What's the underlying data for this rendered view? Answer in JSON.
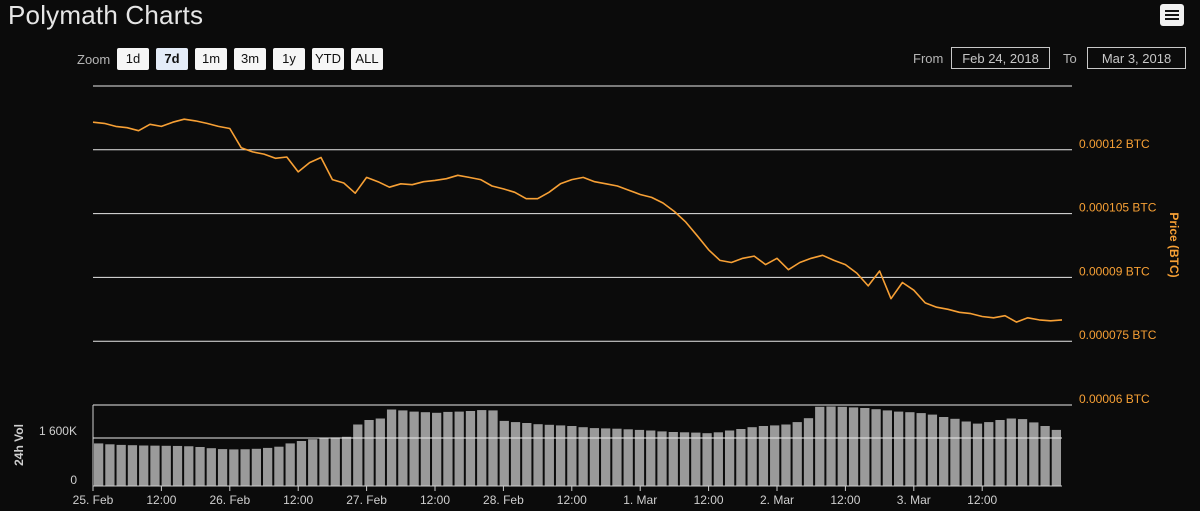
{
  "header": {
    "title": "Polymath Charts",
    "menu_icon": "hamburger-menu-icon"
  },
  "zoom": {
    "label": "Zoom",
    "buttons": [
      "1d",
      "7d",
      "1m",
      "3m",
      "1y",
      "YTD",
      "ALL"
    ],
    "active": "7d"
  },
  "range": {
    "from_label": "From",
    "from_value": "Feb 24, 2018",
    "to_label": "To",
    "to_value": "Mar 3, 2018"
  },
  "colors": {
    "price_line": "#f7a035",
    "grid": "#e8e8e8",
    "volume": "#9a9a9a",
    "price_labels": "#f7a035"
  },
  "chart_data": {
    "type": "line",
    "title": "Polymath Charts",
    "price": {
      "ylabel": "Price (BTC)",
      "ylim": [
        6e-05,
        0.000135
      ],
      "y_ticks": [
        7.5e-05,
        9e-05,
        0.000105,
        0.00012,
        6e-05
      ],
      "y_tick_labels": [
        "0.000075 BTC",
        "0.00009 BTC",
        "0.000105 BTC",
        "0.00012 BTC",
        "0.00006 BTC"
      ],
      "x_hours": [
        0,
        2,
        4,
        6,
        8,
        10,
        12,
        14,
        16,
        18,
        20,
        22,
        24,
        26,
        28,
        30,
        32,
        34,
        36,
        38,
        40,
        42,
        44,
        46,
        48,
        50,
        52,
        54,
        56,
        58,
        60,
        62,
        64,
        66,
        68,
        70,
        72,
        74,
        76,
        78,
        80,
        82,
        84,
        86,
        88,
        90,
        92,
        94,
        96,
        98,
        100,
        102,
        104,
        106,
        108,
        110,
        112,
        114,
        116,
        118,
        120,
        122,
        124,
        126,
        128,
        130,
        132,
        134,
        136,
        138,
        140,
        142,
        144,
        146,
        148,
        150,
        152,
        154,
        156,
        158,
        160,
        162,
        164,
        166,
        168,
        170
      ],
      "values": [
        0.0001265,
        0.0001262,
        0.0001255,
        0.0001252,
        0.0001245,
        0.000126,
        0.0001255,
        0.0001265,
        0.0001272,
        0.0001268,
        0.0001262,
        0.0001255,
        0.000125,
        0.0001205,
        0.0001195,
        0.000119,
        0.000118,
        0.0001183,
        0.0001148,
        0.000117,
        0.0001182,
        0.000113,
        0.0001122,
        0.0001098,
        0.0001135,
        0.0001125,
        0.0001112,
        0.000112,
        0.0001118,
        0.0001125,
        0.0001128,
        0.0001132,
        0.000114,
        0.0001135,
        0.000113,
        0.0001115,
        0.0001108,
        0.00011,
        0.0001085,
        0.0001085,
        0.00011,
        0.000112,
        0.000113,
        0.0001135,
        0.0001125,
        0.000112,
        0.0001115,
        0.0001105,
        0.0001095,
        0.0001088,
        0.0001075,
        0.0001055,
        0.000103,
        9.98e-05,
        9.65e-05,
        9.4e-05,
        9.35e-05,
        9.45e-05,
        9.5e-05,
        9.3e-05,
        9.45e-05,
        9.18e-05,
        9.35e-05,
        9.45e-05,
        9.52e-05,
        9.4e-05,
        9.3e-05,
        9.1e-05,
        8.8e-05,
        9.15e-05,
        8.5e-05,
        8.88e-05,
        8.7e-05,
        8.4e-05,
        8.3e-05,
        8.25e-05,
        8.18e-05,
        8.15e-05,
        8.08e-05,
        8.05e-05,
        8.1e-05,
        7.95e-05,
        8.05e-05,
        8e-05,
        7.98e-05,
        8e-05
      ]
    },
    "volume": {
      "ylabel": "24h Vol",
      "y_ticks": [
        0,
        1600000
      ],
      "y_tick_labels": [
        "0",
        "1 600K"
      ],
      "ylim": [
        0,
        2700000
      ],
      "values": [
        1420000,
        1390000,
        1370000,
        1360000,
        1350000,
        1345000,
        1340000,
        1335000,
        1325000,
        1300000,
        1260000,
        1230000,
        1220000,
        1225000,
        1240000,
        1270000,
        1310000,
        1420000,
        1500000,
        1560000,
        1600000,
        1620000,
        1640000,
        2050000,
        2200000,
        2250000,
        2550000,
        2520000,
        2480000,
        2460000,
        2440000,
        2470000,
        2480000,
        2500000,
        2530000,
        2520000,
        2170000,
        2130000,
        2100000,
        2060000,
        2040000,
        2020000,
        2000000,
        1960000,
        1930000,
        1920000,
        1910000,
        1890000,
        1870000,
        1850000,
        1820000,
        1800000,
        1790000,
        1780000,
        1760000,
        1790000,
        1850000,
        1900000,
        1960000,
        2000000,
        2020000,
        2050000,
        2130000,
        2260000,
        2640000,
        2650000,
        2640000,
        2620000,
        2600000,
        2560000,
        2520000,
        2480000,
        2460000,
        2430000,
        2380000,
        2300000,
        2240000,
        2150000,
        2080000,
        2130000,
        2200000,
        2250000,
        2230000,
        2120000,
        2000000,
        1870000
      ]
    },
    "x_ticks": [
      {
        "hour": 0,
        "label": "25. Feb"
      },
      {
        "hour": 12,
        "label": "12:00"
      },
      {
        "hour": 24,
        "label": "26. Feb"
      },
      {
        "hour": 36,
        "label": "12:00"
      },
      {
        "hour": 48,
        "label": "27. Feb"
      },
      {
        "hour": 60,
        "label": "12:00"
      },
      {
        "hour": 72,
        "label": "28. Feb"
      },
      {
        "hour": 84,
        "label": "12:00"
      },
      {
        "hour": 96,
        "label": "1. Mar"
      },
      {
        "hour": 108,
        "label": "12:00"
      },
      {
        "hour": 120,
        "label": "2. Mar"
      },
      {
        "hour": 132,
        "label": "12:00"
      },
      {
        "hour": 144,
        "label": "3. Mar"
      },
      {
        "hour": 156,
        "label": "12:00"
      }
    ]
  }
}
